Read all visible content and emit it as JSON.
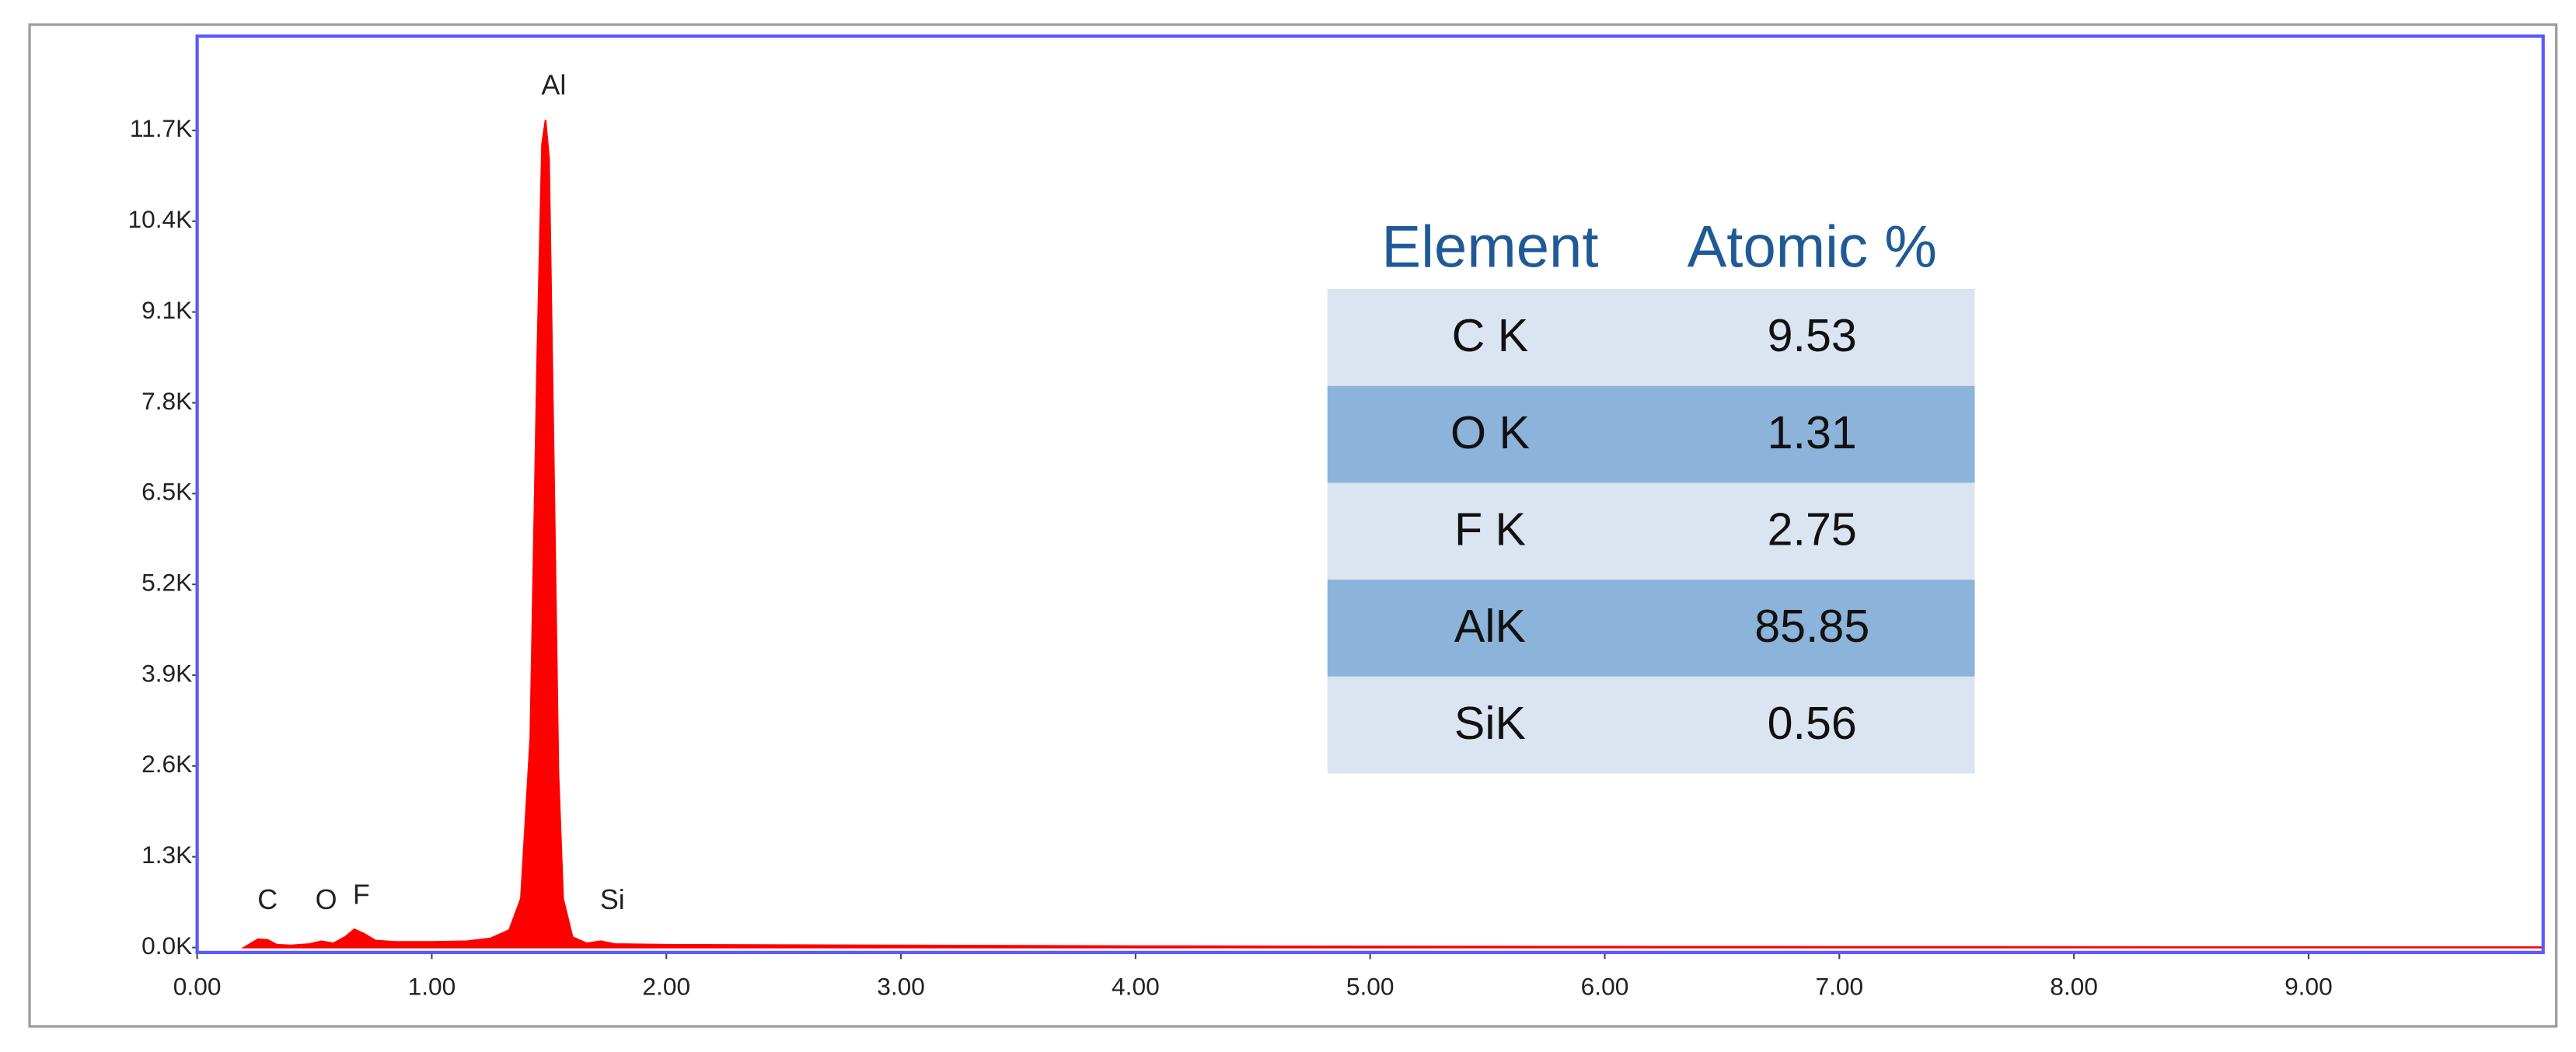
{
  "chart_data": {
    "type": "area",
    "color": "#ff0000",
    "grid": false,
    "x": [
      0.2,
      0.22,
      0.26,
      0.3,
      0.34,
      0.4,
      0.48,
      0.53,
      0.58,
      0.63,
      0.67,
      0.71,
      0.76,
      0.85,
      1.0,
      1.15,
      1.25,
      1.33,
      1.38,
      1.42,
      1.45,
      1.47,
      1.485,
      1.5,
      1.52,
      1.54,
      1.56,
      1.6,
      1.66,
      1.72,
      1.78,
      2.0,
      2.5,
      3.0,
      4.0,
      5.0,
      6.0,
      7.0,
      8.0,
      9.0,
      10.0
    ],
    "values": [
      0,
      40,
      120,
      110,
      40,
      30,
      50,
      90,
      60,
      150,
      260,
      200,
      100,
      80,
      80,
      90,
      130,
      250,
      700,
      3000,
      8500,
      11500,
      11850,
      11300,
      7000,
      2500,
      700,
      150,
      60,
      90,
      50,
      40,
      35,
      30,
      20,
      15,
      12,
      10,
      8,
      6,
      5
    ],
    "xlim": [
      0,
      10
    ],
    "ylim": [
      0,
      13050
    ],
    "xticks": [
      {
        "value": 0,
        "label": "0.00"
      },
      {
        "value": 1,
        "label": "1.00"
      },
      {
        "value": 2,
        "label": "2.00"
      },
      {
        "value": 3,
        "label": "3.00"
      },
      {
        "value": 4,
        "label": "4.00"
      },
      {
        "value": 5,
        "label": "5.00"
      },
      {
        "value": 6,
        "label": "6.00"
      },
      {
        "value": 7,
        "label": "7.00"
      },
      {
        "value": 8,
        "label": "8.00"
      },
      {
        "value": 9,
        "label": "9.00"
      }
    ],
    "yticks": [
      {
        "value": 0,
        "label": "0.0K"
      },
      {
        "value": 1300,
        "label": "1.3K"
      },
      {
        "value": 2600,
        "label": "2.6K"
      },
      {
        "value": 3900,
        "label": "3.9K"
      },
      {
        "value": 5200,
        "label": "5.2K"
      },
      {
        "value": 6500,
        "label": "6.5K"
      },
      {
        "value": 7800,
        "label": "7.8K"
      },
      {
        "value": 9100,
        "label": "9.1K"
      },
      {
        "value": 10400,
        "label": "10.4K"
      },
      {
        "value": 11700,
        "label": "11.7K"
      }
    ],
    "annotations": [
      {
        "text": "C",
        "x": 0.3
      },
      {
        "text": "O",
        "x": 0.55
      },
      {
        "text": "F",
        "x": 0.7
      },
      {
        "text": "Al",
        "x": 1.52
      },
      {
        "text": "Si",
        "x": 1.77
      }
    ]
  },
  "table": {
    "header": [
      "Element",
      "Atomic %"
    ],
    "rows": [
      [
        "C K",
        9.53
      ],
      [
        "O K",
        1.31
      ],
      [
        "F K",
        2.75
      ],
      [
        "AlK",
        85.85
      ],
      [
        "SiK",
        0.56
      ]
    ]
  }
}
